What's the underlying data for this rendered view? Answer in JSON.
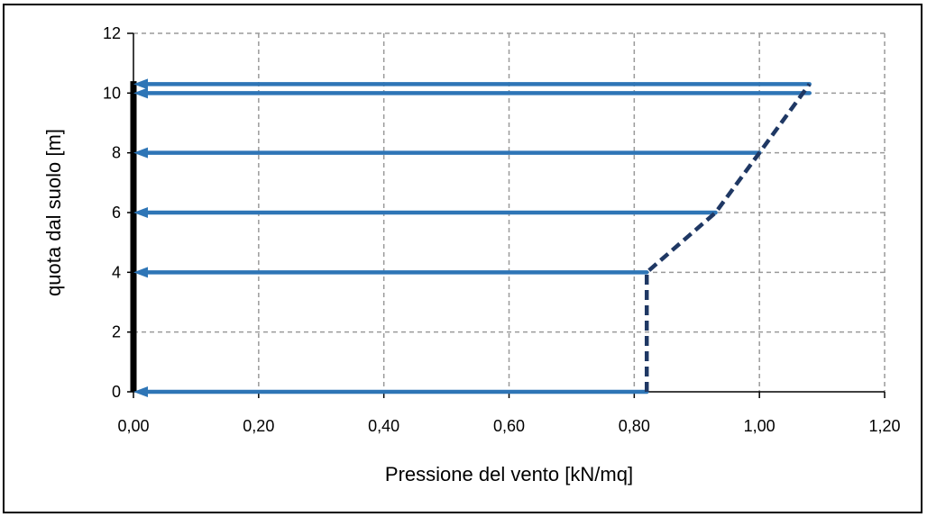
{
  "chart_data": {
    "type": "line",
    "title": "",
    "xlabel": "Pressione del vento [kN/mq]",
    "ylabel": "quota dal suolo  [m]",
    "xlim": [
      0,
      1.2
    ],
    "ylim": [
      0,
      12
    ],
    "x_ticks": [
      0,
      0.2,
      0.4,
      0.6,
      0.8,
      1.0,
      1.2
    ],
    "x_tick_labels": [
      "0,00",
      "0,20",
      "0,40",
      "0,60",
      "0,80",
      "1,00",
      "1,20"
    ],
    "y_ticks": [
      0,
      2,
      4,
      6,
      8,
      10,
      12
    ],
    "y_tick_labels": [
      "0",
      "2",
      "4",
      "6",
      "8",
      "10",
      "12"
    ],
    "grid": true,
    "legend": "none",
    "series": [
      {
        "style": "dashed",
        "color": "#1F3864",
        "points": [
          {
            "x": 0.82,
            "y": 0
          },
          {
            "x": 0.82,
            "y": 4
          },
          {
            "x": 0.93,
            "y": 6
          },
          {
            "x": 1.0,
            "y": 8
          },
          {
            "x": 1.08,
            "y": 10.3
          }
        ]
      },
      {
        "style": "arrows",
        "color": "#2E75B6",
        "arrows": [
          {
            "from_x": 0.82,
            "to_x": 0,
            "y": 0
          },
          {
            "from_x": 0.82,
            "to_x": 0,
            "y": 4
          },
          {
            "from_x": 0.93,
            "to_x": 0,
            "y": 6
          },
          {
            "from_x": 1.0,
            "to_x": 0,
            "y": 8
          },
          {
            "from_x": 1.08,
            "to_x": 0,
            "y": 10.0
          },
          {
            "from_x": 1.08,
            "to_x": 0,
            "y": 10.3
          }
        ]
      },
      {
        "style": "solid-thick",
        "color": "#000000",
        "points": [
          {
            "x": 0,
            "y": 0
          },
          {
            "x": 0,
            "y": 10.4
          }
        ]
      }
    ]
  }
}
